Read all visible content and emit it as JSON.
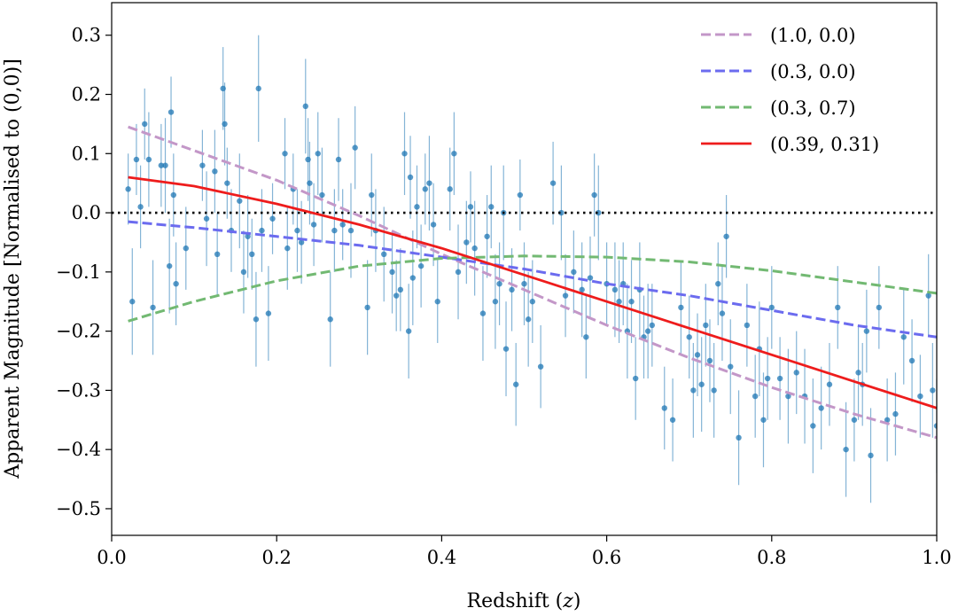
{
  "chart_data": {
    "type": "scatter",
    "xlabel": "Redshift (",
    "xlabel_var": "z",
    "xlabel_close": ")",
    "ylabel": "Apparent Magnitude [Normalised to (0,0)]",
    "xlim": [
      0.0,
      1.0
    ],
    "ylim": [
      -0.545,
      0.355
    ],
    "x_ticks": [
      0.0,
      0.2,
      0.4,
      0.6,
      0.8,
      1.0
    ],
    "x_tick_labels": [
      "0.0",
      "0.2",
      "0.4",
      "0.6",
      "0.8",
      "1.0"
    ],
    "y_ticks": [
      0.3,
      0.2,
      0.1,
      0.0,
      -0.1,
      -0.2,
      -0.3,
      -0.4,
      -0.5
    ],
    "y_tick_labels": [
      "0.3",
      "0.2",
      "0.1",
      "0.0",
      "−0.1",
      "−0.2",
      "−0.3",
      "−0.4",
      "−0.5"
    ],
    "grid": false,
    "legend_position": "top-right",
    "reference_line": {
      "y": 0.0,
      "style": "dotted",
      "color": "#000000"
    },
    "scatter": {
      "color": "#1f77b4",
      "points": [
        [
          0.02,
          0.04,
          0.06
        ],
        [
          0.025,
          -0.15,
          0.09
        ],
        [
          0.03,
          0.09,
          0.06
        ],
        [
          0.035,
          0.01,
          0.07
        ],
        [
          0.04,
          0.15,
          0.06
        ],
        [
          0.045,
          0.09,
          0.08
        ],
        [
          0.05,
          -0.16,
          0.08
        ],
        [
          0.06,
          0.08,
          0.07
        ],
        [
          0.065,
          0.08,
          0.08
        ],
        [
          0.07,
          -0.09,
          0.08
        ],
        [
          0.072,
          0.17,
          0.06
        ],
        [
          0.075,
          0.03,
          0.07
        ],
        [
          0.078,
          -0.12,
          0.07
        ],
        [
          0.09,
          -0.06,
          0.07
        ],
        [
          0.11,
          0.08,
          0.06
        ],
        [
          0.115,
          -0.01,
          0.08
        ],
        [
          0.125,
          0.07,
          0.07
        ],
        [
          0.128,
          -0.07,
          0.07
        ],
        [
          0.135,
          0.21,
          0.07
        ],
        [
          0.137,
          0.15,
          0.07
        ],
        [
          0.14,
          0.05,
          0.06
        ],
        [
          0.145,
          -0.03,
          0.07
        ],
        [
          0.155,
          0.02,
          0.08
        ],
        [
          0.16,
          -0.1,
          0.07
        ],
        [
          0.165,
          -0.04,
          0.07
        ],
        [
          0.17,
          -0.07,
          0.06
        ],
        [
          0.175,
          -0.18,
          0.08
        ],
        [
          0.178,
          0.21,
          0.09
        ],
        [
          0.182,
          -0.03,
          0.07
        ],
        [
          0.19,
          -0.17,
          0.08
        ],
        [
          0.195,
          -0.01,
          0.06
        ],
        [
          0.21,
          0.1,
          0.06
        ],
        [
          0.213,
          -0.06,
          0.07
        ],
        [
          0.22,
          0.04,
          0.06
        ],
        [
          0.225,
          -0.03,
          0.07
        ],
        [
          0.23,
          -0.05,
          0.07
        ],
        [
          0.235,
          0.18,
          0.08
        ],
        [
          0.238,
          0.09,
          0.07
        ],
        [
          0.24,
          0.05,
          0.07
        ],
        [
          0.245,
          -0.02,
          0.07
        ],
        [
          0.25,
          0.1,
          0.07
        ],
        [
          0.255,
          0.03,
          0.08
        ],
        [
          0.265,
          -0.18,
          0.08
        ],
        [
          0.27,
          -0.03,
          0.07
        ],
        [
          0.275,
          0.09,
          0.07
        ],
        [
          0.28,
          -0.02,
          0.06
        ],
        [
          0.29,
          -0.03,
          0.08
        ],
        [
          0.295,
          0.11,
          0.07
        ],
        [
          0.31,
          -0.16,
          0.08
        ],
        [
          0.315,
          0.03,
          0.07
        ],
        [
          0.32,
          -0.03,
          0.07
        ],
        [
          0.33,
          -0.07,
          0.08
        ],
        [
          0.34,
          -0.1,
          0.07
        ],
        [
          0.345,
          -0.14,
          0.06
        ],
        [
          0.35,
          -0.13,
          0.07
        ],
        [
          0.355,
          0.1,
          0.07
        ],
        [
          0.36,
          -0.2,
          0.08
        ],
        [
          0.362,
          0.06,
          0.07
        ],
        [
          0.365,
          -0.11,
          0.08
        ],
        [
          0.37,
          0.01,
          0.07
        ],
        [
          0.375,
          -0.09,
          0.07
        ],
        [
          0.38,
          0.04,
          0.06
        ],
        [
          0.385,
          0.05,
          0.08
        ],
        [
          0.39,
          -0.02,
          0.07
        ],
        [
          0.395,
          -0.15,
          0.07
        ],
        [
          0.41,
          0.04,
          0.07
        ],
        [
          0.415,
          0.1,
          0.07
        ],
        [
          0.42,
          -0.1,
          0.08
        ],
        [
          0.43,
          -0.05,
          0.07
        ],
        [
          0.435,
          0.01,
          0.06
        ],
        [
          0.44,
          -0.06,
          0.08
        ],
        [
          0.45,
          -0.17,
          0.08
        ],
        [
          0.455,
          -0.04,
          0.07
        ],
        [
          0.46,
          0.01,
          0.07
        ],
        [
          0.465,
          -0.15,
          0.08
        ],
        [
          0.47,
          -0.12,
          0.07
        ],
        [
          0.475,
          0.0,
          0.08
        ],
        [
          0.478,
          -0.23,
          0.08
        ],
        [
          0.485,
          -0.13,
          0.07
        ],
        [
          0.49,
          -0.29,
          0.07
        ],
        [
          0.495,
          0.03,
          0.06
        ],
        [
          0.5,
          -0.12,
          0.07
        ],
        [
          0.505,
          -0.18,
          0.08
        ],
        [
          0.51,
          -0.15,
          0.07
        ],
        [
          0.52,
          -0.26,
          0.07
        ],
        [
          0.535,
          0.05,
          0.07
        ],
        [
          0.545,
          0.0,
          0.08
        ],
        [
          0.55,
          -0.14,
          0.07
        ],
        [
          0.56,
          -0.1,
          0.07
        ],
        [
          0.57,
          -0.13,
          0.08
        ],
        [
          0.575,
          -0.21,
          0.07
        ],
        [
          0.58,
          -0.11,
          0.07
        ],
        [
          0.585,
          0.03,
          0.07
        ],
        [
          0.59,
          0.0,
          0.08
        ],
        [
          0.6,
          -0.12,
          0.07
        ],
        [
          0.61,
          -0.13,
          0.08
        ],
        [
          0.615,
          -0.15,
          0.07
        ],
        [
          0.62,
          -0.12,
          0.07
        ],
        [
          0.625,
          -0.2,
          0.08
        ],
        [
          0.63,
          -0.15,
          0.07
        ],
        [
          0.635,
          -0.28,
          0.07
        ],
        [
          0.64,
          -0.13,
          0.08
        ],
        [
          0.645,
          -0.21,
          0.07
        ],
        [
          0.65,
          -0.2,
          0.08
        ],
        [
          0.655,
          -0.19,
          0.07
        ],
        [
          0.67,
          -0.33,
          0.07
        ],
        [
          0.68,
          -0.35,
          0.07
        ],
        [
          0.69,
          -0.16,
          0.08
        ],
        [
          0.7,
          -0.21,
          0.07
        ],
        [
          0.705,
          -0.3,
          0.08
        ],
        [
          0.71,
          -0.24,
          0.07
        ],
        [
          0.715,
          -0.29,
          0.08
        ],
        [
          0.72,
          -0.19,
          0.07
        ],
        [
          0.725,
          -0.25,
          0.07
        ],
        [
          0.73,
          -0.3,
          0.08
        ],
        [
          0.735,
          -0.12,
          0.07
        ],
        [
          0.74,
          -0.17,
          0.08
        ],
        [
          0.745,
          -0.04,
          0.07
        ],
        [
          0.75,
          -0.26,
          0.08
        ],
        [
          0.76,
          -0.38,
          0.08
        ],
        [
          0.77,
          -0.19,
          0.07
        ],
        [
          0.78,
          -0.31,
          0.07
        ],
        [
          0.785,
          -0.23,
          0.08
        ],
        [
          0.79,
          -0.35,
          0.08
        ],
        [
          0.795,
          -0.28,
          0.07
        ],
        [
          0.8,
          -0.16,
          0.07
        ],
        [
          0.81,
          -0.28,
          0.07
        ],
        [
          0.82,
          -0.31,
          0.08
        ],
        [
          0.83,
          -0.27,
          0.07
        ],
        [
          0.84,
          -0.31,
          0.08
        ],
        [
          0.85,
          -0.36,
          0.08
        ],
        [
          0.86,
          -0.33,
          0.07
        ],
        [
          0.87,
          -0.29,
          0.07
        ],
        [
          0.88,
          -0.16,
          0.07
        ],
        [
          0.89,
          -0.4,
          0.08
        ],
        [
          0.9,
          -0.35,
          0.07
        ],
        [
          0.905,
          -0.27,
          0.08
        ],
        [
          0.91,
          -0.29,
          0.07
        ],
        [
          0.915,
          -0.2,
          0.07
        ],
        [
          0.92,
          -0.41,
          0.08
        ],
        [
          0.93,
          -0.16,
          0.07
        ],
        [
          0.94,
          -0.35,
          0.07
        ],
        [
          0.95,
          -0.34,
          0.07
        ],
        [
          0.96,
          -0.21,
          0.08
        ],
        [
          0.97,
          -0.25,
          0.07
        ],
        [
          0.98,
          -0.31,
          0.07
        ],
        [
          0.99,
          -0.14,
          0.07
        ],
        [
          0.995,
          -0.3,
          0.08
        ],
        [
          1.0,
          -0.36,
          0.08
        ]
      ]
    },
    "series": [
      {
        "name": "(1.0, 0.0)",
        "color": "#c397c8",
        "dash": true,
        "x": [
          0.02,
          0.1,
          0.2,
          0.3,
          0.4,
          0.5,
          0.6,
          0.7,
          0.8,
          0.9,
          1.0
        ],
        "y": [
          0.145,
          0.105,
          0.055,
          -0.005,
          -0.07,
          -0.13,
          -0.19,
          -0.245,
          -0.295,
          -0.34,
          -0.38
        ]
      },
      {
        "name": "(0.3, 0.0)",
        "color": "#6b6bef",
        "dash": true,
        "x": [
          0.02,
          0.1,
          0.2,
          0.3,
          0.4,
          0.5,
          0.6,
          0.7,
          0.8,
          0.9,
          1.0
        ],
        "y": [
          -0.015,
          -0.025,
          -0.04,
          -0.055,
          -0.075,
          -0.095,
          -0.12,
          -0.14,
          -0.165,
          -0.19,
          -0.21
        ]
      },
      {
        "name": "(0.3, 0.7)",
        "color": "#72b972",
        "dash": true,
        "x": [
          0.02,
          0.1,
          0.2,
          0.3,
          0.4,
          0.5,
          0.6,
          0.7,
          0.8,
          0.9,
          1.0
        ],
        "y": [
          -0.183,
          -0.15,
          -0.115,
          -0.09,
          -0.077,
          -0.073,
          -0.075,
          -0.083,
          -0.098,
          -0.117,
          -0.136
        ]
      },
      {
        "name": "(0.39, 0.31)",
        "color": "#ee1c1c",
        "dash": false,
        "x": [
          0.02,
          0.1,
          0.2,
          0.3,
          0.4,
          0.5,
          0.6,
          0.7,
          0.8,
          0.9,
          1.0
        ],
        "y": [
          0.06,
          0.045,
          0.015,
          -0.02,
          -0.06,
          -0.105,
          -0.15,
          -0.195,
          -0.24,
          -0.285,
          -0.33
        ]
      }
    ]
  }
}
